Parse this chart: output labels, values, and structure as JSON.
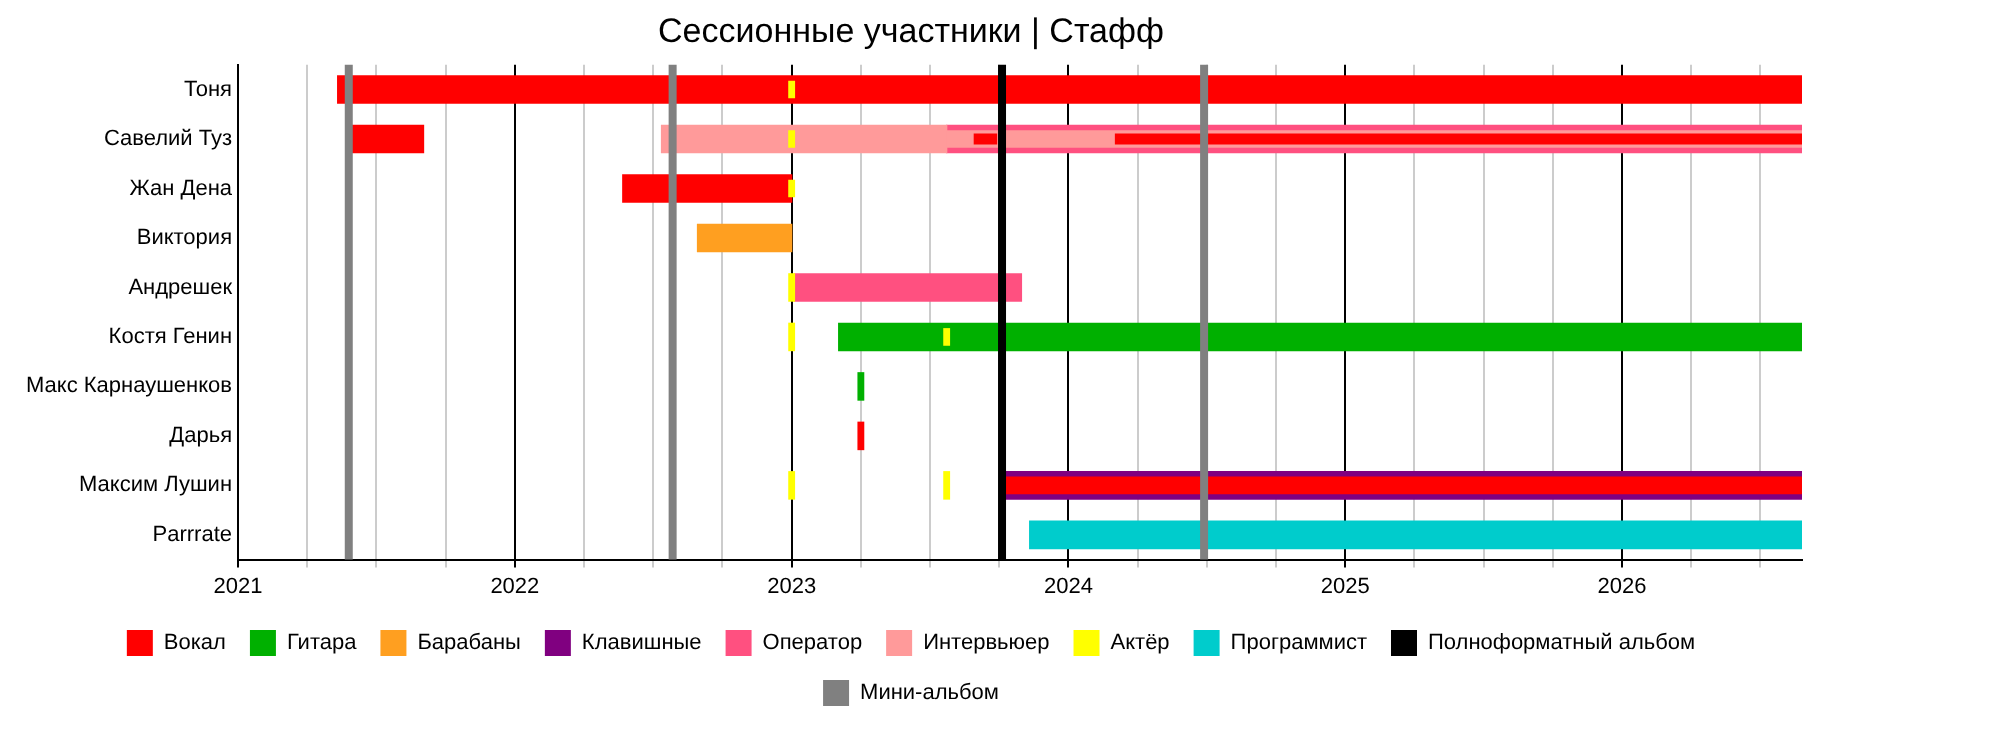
{
  "chart_data": {
    "type": "bar",
    "orientation": "horizontal",
    "title": "Сессионные участники | Стафф",
    "categories": [
      "Тоня",
      "Савелий Туз",
      "Жан Дена",
      "Виктория",
      "Андрешек",
      "Костя Генин",
      "Макс Карнаушенков",
      "Дарья",
      "Максим Лушин",
      "Parrrate"
    ],
    "series": [
      {
        "name": "Вокал",
        "color": "#ff0000",
        "base": [
          2021.36,
          2021.41,
          2022.39,
          null,
          null,
          null,
          null,
          2023.24,
          null,
          null
        ],
        "values": [
          5.29,
          0.26,
          0.61,
          null,
          null,
          null,
          null,
          0.02,
          null,
          null
        ]
      },
      {
        "name": "Гитара",
        "color": "#00b000",
        "base": [
          null,
          null,
          null,
          null,
          null,
          2023.17,
          2023.24,
          null,
          null,
          null
        ],
        "values": [
          null,
          null,
          null,
          null,
          null,
          3.48,
          0.02,
          null,
          null,
          null
        ]
      },
      {
        "name": "Барабаны",
        "color": "#ff9f20",
        "base": [
          null,
          null,
          null,
          2022.66,
          null,
          null,
          null,
          null,
          null,
          null
        ],
        "values": [
          null,
          null,
          null,
          0.34,
          null,
          null,
          null,
          null,
          null,
          null
        ]
      },
      {
        "name": "Клавишные",
        "color": "#800080",
        "base": [
          null,
          null,
          null,
          null,
          null,
          null,
          null,
          null,
          2023.77,
          null
        ],
        "values": [
          null,
          null,
          null,
          null,
          null,
          null,
          null,
          null,
          2.88,
          null
        ]
      },
      {
        "name": "Оператор",
        "color": "#ff5080",
        "base": [
          null,
          2023.56,
          null,
          null,
          2023.01,
          null,
          null,
          null,
          null,
          null
        ],
        "values": [
          null,
          3.09,
          null,
          null,
          0.82,
          null,
          null,
          null,
          null,
          null
        ]
      },
      {
        "name": "Интервьюер",
        "color": "#ff9a9a",
        "base": [
          null,
          2022.53,
          null,
          null,
          null,
          null,
          null,
          null,
          null,
          null
        ],
        "values": [
          null,
          1.03,
          null,
          null,
          null,
          null,
          null,
          null,
          null,
          null
        ]
      },
      {
        "name": "Актёр",
        "color": "#ffff00",
        "base": [
          null,
          null,
          null,
          null,
          2022.99,
          2022.99,
          null,
          null,
          2022.99,
          null
        ],
        "values": [
          null,
          null,
          null,
          null,
          0.02,
          0.02,
          null,
          null,
          0.02,
          null
        ]
      },
      {
        "name": "Программист",
        "color": "#00cccc",
        "base": [
          null,
          null,
          null,
          null,
          null,
          null,
          null,
          null,
          null,
          2023.86
        ],
        "values": [
          null,
          null,
          null,
          null,
          null,
          null,
          null,
          null,
          null,
          2.79
        ]
      },
      {
        "color": "#ff9a9a",
        "base": [
          null,
          2023.56,
          null,
          null,
          null,
          null,
          null,
          null,
          null,
          null
        ],
        "values": [
          null,
          3.09,
          null,
          null,
          null,
          null,
          null,
          null,
          null,
          null
        ]
      },
      {
        "color": "#ff0000",
        "base": [
          null,
          2023.66,
          null,
          null,
          null,
          null,
          null,
          null,
          2023.77,
          null
        ],
        "values": [
          null,
          0.08,
          null,
          null,
          null,
          null,
          null,
          null,
          2.88,
          null
        ]
      },
      {
        "color": "#ff0000",
        "base": [
          null,
          2024.17,
          null,
          null,
          null,
          null,
          null,
          null,
          null,
          null
        ],
        "values": [
          null,
          2.48,
          null,
          null,
          null,
          null,
          null,
          null,
          null,
          null
        ]
      },
      {
        "color": "#ffff00",
        "base": [
          2022.99,
          2022.99,
          2022.99,
          null,
          null,
          2023.55,
          null,
          null,
          2023.55,
          null
        ],
        "values": [
          0.02,
          0.02,
          0.02,
          null,
          null,
          0.02,
          null,
          null,
          0.02,
          null
        ]
      }
    ],
    "xlim": [
      2021,
      2026.65
    ],
    "xticks": [
      2021,
      {
        "value": 2021.25,
        "label": null
      },
      {
        "value": 2021.5,
        "label": null
      },
      {
        "value": 2021.75,
        "label": null
      },
      2022,
      {
        "value": 2022.25,
        "label": null
      },
      {
        "value": 2022.5,
        "label": null
      },
      {
        "value": 2022.75,
        "label": null
      },
      2023,
      {
        "value": 2023.25,
        "label": null
      },
      {
        "value": 2023.5,
        "label": null
      },
      {
        "value": 2023.75,
        "label": null
      },
      2024,
      {
        "value": 2024.25,
        "label": null
      },
      {
        "value": 2024.5,
        "label": null
      },
      {
        "value": 2024.75,
        "label": null
      },
      2025,
      {
        "value": 2025.25,
        "label": null
      },
      {
        "value": 2025.5,
        "label": null
      },
      {
        "value": 2025.75,
        "label": null
      },
      2026,
      {
        "value": 2026.25,
        "label": null
      },
      {
        "value": 2026.5,
        "label": null
      }
    ],
    "grid": "x",
    "legend": "bottom",
    "ref_lines": [
      {
        "axis": "x",
        "value": 2023.76,
        "label": "Полноформатный альбом",
        "color": "#000000"
      },
      {
        "axis": "x",
        "value": 2021.4,
        "label": "Мини-альбом",
        "color": "#808080"
      },
      {
        "axis": "x",
        "value": 2022.57,
        "color": "#808080"
      },
      {
        "axis": "x",
        "value": 2024.49,
        "color": "#808080"
      }
    ]
  }
}
